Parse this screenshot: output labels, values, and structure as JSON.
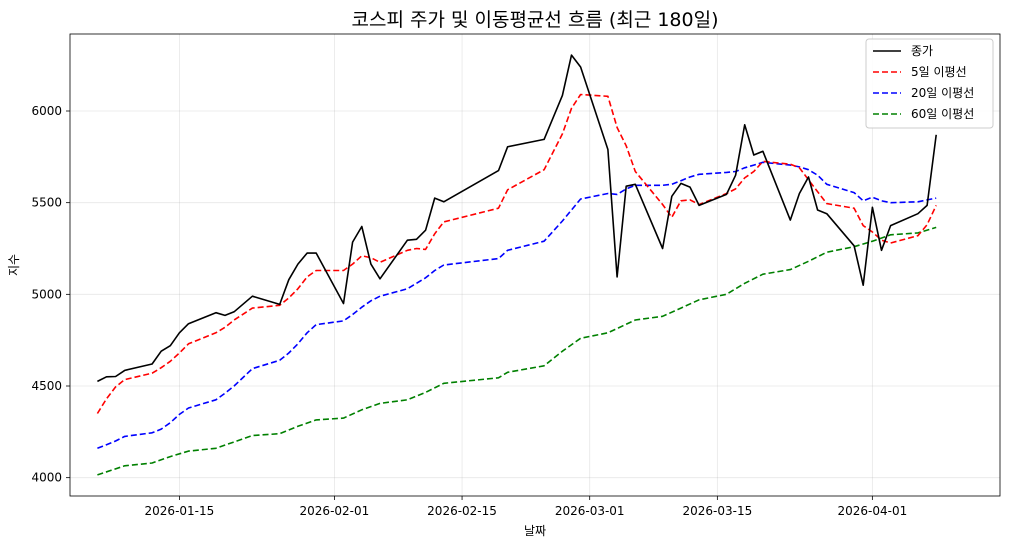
{
  "chart_data": {
    "type": "line",
    "title": "코스피 주가 및 이동평균선 흐름 (최근 180일)",
    "xlabel": "날짜",
    "ylabel": "지수",
    "xlim": [
      "2026-01-03",
      "2026-04-15"
    ],
    "ylim": [
      3900,
      6420
    ],
    "x_ticks": [
      "2026-01-15",
      "2026-02-01",
      "2026-02-15",
      "2026-03-01",
      "2026-03-15",
      "2026-04-01"
    ],
    "y_ticks": [
      4000,
      4500,
      5000,
      5500,
      6000
    ],
    "grid": true,
    "legend_position": "top-right",
    "series": [
      {
        "name": "종가",
        "color": "#000000",
        "style": "solid",
        "points": [
          [
            "2026-01-06",
            4525
          ],
          [
            "2026-01-07",
            4550
          ],
          [
            "2026-01-08",
            4552
          ],
          [
            "2026-01-09",
            4585
          ],
          [
            "2026-01-12",
            4620
          ],
          [
            "2026-01-13",
            4690
          ],
          [
            "2026-01-14",
            4720
          ],
          [
            "2026-01-15",
            4790
          ],
          [
            "2026-01-16",
            4840
          ],
          [
            "2026-01-19",
            4900
          ],
          [
            "2026-01-20",
            4885
          ],
          [
            "2026-01-21",
            4905
          ],
          [
            "2026-01-23",
            4990
          ],
          [
            "2026-01-26",
            4945
          ],
          [
            "2026-01-27",
            5080
          ],
          [
            "2026-01-28",
            5165
          ],
          [
            "2026-01-29",
            5225
          ],
          [
            "2026-01-30",
            5225
          ],
          [
            "2026-02-02",
            4950
          ],
          [
            "2026-02-03",
            5285
          ],
          [
            "2026-02-04",
            5370
          ],
          [
            "2026-02-05",
            5165
          ],
          [
            "2026-02-06",
            5085
          ],
          [
            "2026-02-09",
            5295
          ],
          [
            "2026-02-10",
            5300
          ],
          [
            "2026-02-11",
            5350
          ],
          [
            "2026-02-12",
            5525
          ],
          [
            "2026-02-13",
            5505
          ],
          [
            "2026-02-19",
            5675
          ],
          [
            "2026-02-20",
            5805
          ],
          [
            "2026-02-24",
            5845
          ],
          [
            "2026-02-26",
            6085
          ],
          [
            "2026-02-27",
            6305
          ],
          [
            "2026-02-28",
            6240
          ],
          [
            "2026-03-03",
            5790
          ],
          [
            "2026-03-04",
            5095
          ],
          [
            "2026-03-05",
            5590
          ],
          [
            "2026-03-06",
            5600
          ],
          [
            "2026-03-09",
            5250
          ],
          [
            "2026-03-10",
            5535
          ],
          [
            "2026-03-11",
            5605
          ],
          [
            "2026-03-12",
            5585
          ],
          [
            "2026-03-13",
            5485
          ],
          [
            "2026-03-16",
            5545
          ],
          [
            "2026-03-17",
            5650
          ],
          [
            "2026-03-18",
            5925
          ],
          [
            "2026-03-19",
            5760
          ],
          [
            "2026-03-20",
            5780
          ],
          [
            "2026-03-23",
            5405
          ],
          [
            "2026-03-24",
            5550
          ],
          [
            "2026-03-25",
            5640
          ],
          [
            "2026-03-26",
            5460
          ],
          [
            "2026-03-27",
            5440
          ],
          [
            "2026-03-30",
            5265
          ],
          [
            "2026-03-31",
            5050
          ],
          [
            "2026-04-01",
            5475
          ],
          [
            "2026-04-02",
            5240
          ],
          [
            "2026-04-03",
            5375
          ],
          [
            "2026-04-06",
            5440
          ],
          [
            "2026-04-07",
            5485
          ],
          [
            "2026-04-08",
            5870
          ]
        ]
      },
      {
        "name": "5일 이평선",
        "color": "#ff0000",
        "style": "dashed",
        "points": [
          [
            "2026-01-06",
            4350
          ],
          [
            "2026-01-07",
            4430
          ],
          [
            "2026-01-08",
            4495
          ],
          [
            "2026-01-09",
            4535
          ],
          [
            "2026-01-12",
            4570
          ],
          [
            "2026-01-13",
            4600
          ],
          [
            "2026-01-14",
            4635
          ],
          [
            "2026-01-15",
            4680
          ],
          [
            "2026-01-16",
            4730
          ],
          [
            "2026-01-19",
            4790
          ],
          [
            "2026-01-20",
            4820
          ],
          [
            "2026-01-21",
            4860
          ],
          [
            "2026-01-23",
            4925
          ],
          [
            "2026-01-26",
            4940
          ],
          [
            "2026-01-27",
            4980
          ],
          [
            "2026-01-28",
            5030
          ],
          [
            "2026-01-29",
            5095
          ],
          [
            "2026-01-30",
            5130
          ],
          [
            "2026-02-02",
            5130
          ],
          [
            "2026-02-03",
            5165
          ],
          [
            "2026-02-04",
            5210
          ],
          [
            "2026-02-05",
            5200
          ],
          [
            "2026-02-06",
            5175
          ],
          [
            "2026-02-09",
            5240
          ],
          [
            "2026-02-10",
            5250
          ],
          [
            "2026-02-11",
            5245
          ],
          [
            "2026-02-12",
            5330
          ],
          [
            "2026-02-13",
            5395
          ],
          [
            "2026-02-19",
            5470
          ],
          [
            "2026-02-20",
            5570
          ],
          [
            "2026-02-24",
            5680
          ],
          [
            "2026-02-26",
            5875
          ],
          [
            "2026-02-27",
            6015
          ],
          [
            "2026-02-28",
            6090
          ],
          [
            "2026-03-03",
            6080
          ],
          [
            "2026-03-04",
            5910
          ],
          [
            "2026-03-05",
            5810
          ],
          [
            "2026-03-06",
            5670
          ],
          [
            "2026-03-09",
            5490
          ],
          [
            "2026-03-10",
            5420
          ],
          [
            "2026-03-11",
            5510
          ],
          [
            "2026-03-12",
            5515
          ],
          [
            "2026-03-13",
            5490
          ],
          [
            "2026-03-16",
            5550
          ],
          [
            "2026-03-17",
            5575
          ],
          [
            "2026-03-18",
            5635
          ],
          [
            "2026-03-19",
            5670
          ],
          [
            "2026-03-20",
            5725
          ],
          [
            "2026-03-23",
            5710
          ],
          [
            "2026-03-24",
            5690
          ],
          [
            "2026-03-25",
            5625
          ],
          [
            "2026-03-26",
            5560
          ],
          [
            "2026-03-27",
            5495
          ],
          [
            "2026-03-30",
            5470
          ],
          [
            "2026-03-31",
            5375
          ],
          [
            "2026-04-01",
            5340
          ],
          [
            "2026-04-02",
            5295
          ],
          [
            "2026-04-03",
            5280
          ],
          [
            "2026-04-06",
            5320
          ],
          [
            "2026-04-07",
            5380
          ],
          [
            "2026-04-08",
            5485
          ]
        ]
      },
      {
        "name": "20일 이평선",
        "color": "#0000ff",
        "style": "dashed",
        "points": [
          [
            "2026-01-06",
            4160
          ],
          [
            "2026-01-07",
            4180
          ],
          [
            "2026-01-08",
            4200
          ],
          [
            "2026-01-09",
            4225
          ],
          [
            "2026-01-12",
            4245
          ],
          [
            "2026-01-13",
            4265
          ],
          [
            "2026-01-14",
            4300
          ],
          [
            "2026-01-15",
            4345
          ],
          [
            "2026-01-16",
            4380
          ],
          [
            "2026-01-19",
            4425
          ],
          [
            "2026-01-20",
            4460
          ],
          [
            "2026-01-21",
            4500
          ],
          [
            "2026-01-23",
            4595
          ],
          [
            "2026-01-26",
            4640
          ],
          [
            "2026-01-27",
            4680
          ],
          [
            "2026-01-28",
            4730
          ],
          [
            "2026-01-29",
            4790
          ],
          [
            "2026-01-30",
            4835
          ],
          [
            "2026-02-02",
            4855
          ],
          [
            "2026-02-03",
            4890
          ],
          [
            "2026-02-04",
            4930
          ],
          [
            "2026-02-05",
            4965
          ],
          [
            "2026-02-06",
            4990
          ],
          [
            "2026-02-09",
            5030
          ],
          [
            "2026-02-10",
            5060
          ],
          [
            "2026-02-11",
            5090
          ],
          [
            "2026-02-12",
            5130
          ],
          [
            "2026-02-13",
            5160
          ],
          [
            "2026-02-19",
            5195
          ],
          [
            "2026-02-20",
            5240
          ],
          [
            "2026-02-24",
            5290
          ],
          [
            "2026-02-26",
            5400
          ],
          [
            "2026-02-27",
            5460
          ],
          [
            "2026-02-28",
            5520
          ],
          [
            "2026-03-03",
            5550
          ],
          [
            "2026-03-04",
            5545
          ],
          [
            "2026-03-05",
            5575
          ],
          [
            "2026-03-06",
            5595
          ],
          [
            "2026-03-09",
            5595
          ],
          [
            "2026-03-10",
            5600
          ],
          [
            "2026-03-11",
            5620
          ],
          [
            "2026-03-12",
            5640
          ],
          [
            "2026-03-13",
            5655
          ],
          [
            "2026-03-16",
            5665
          ],
          [
            "2026-03-17",
            5670
          ],
          [
            "2026-03-18",
            5690
          ],
          [
            "2026-03-19",
            5705
          ],
          [
            "2026-03-20",
            5720
          ],
          [
            "2026-03-23",
            5705
          ],
          [
            "2026-03-24",
            5695
          ],
          [
            "2026-03-25",
            5680
          ],
          [
            "2026-03-26",
            5650
          ],
          [
            "2026-03-27",
            5600
          ],
          [
            "2026-03-30",
            5555
          ],
          [
            "2026-03-31",
            5510
          ],
          [
            "2026-04-01",
            5530
          ],
          [
            "2026-04-02",
            5510
          ],
          [
            "2026-04-03",
            5500
          ],
          [
            "2026-04-06",
            5505
          ],
          [
            "2026-04-07",
            5515
          ],
          [
            "2026-04-08",
            5525
          ]
        ]
      },
      {
        "name": "60일 이평선",
        "color": "#008000",
        "style": "dashed",
        "points": [
          [
            "2026-01-06",
            4015
          ],
          [
            "2026-01-09",
            4065
          ],
          [
            "2026-01-12",
            4080
          ],
          [
            "2026-01-14",
            4115
          ],
          [
            "2026-01-16",
            4145
          ],
          [
            "2026-01-19",
            4160
          ],
          [
            "2026-01-23",
            4230
          ],
          [
            "2026-01-26",
            4240
          ],
          [
            "2026-01-28",
            4280
          ],
          [
            "2026-01-30",
            4315
          ],
          [
            "2026-02-02",
            4325
          ],
          [
            "2026-02-04",
            4370
          ],
          [
            "2026-02-06",
            4405
          ],
          [
            "2026-02-09",
            4425
          ],
          [
            "2026-02-11",
            4465
          ],
          [
            "2026-02-13",
            4515
          ],
          [
            "2026-02-19",
            4545
          ],
          [
            "2026-02-20",
            4575
          ],
          [
            "2026-02-24",
            4610
          ],
          [
            "2026-02-26",
            4690
          ],
          [
            "2026-02-28",
            4760
          ],
          [
            "2026-03-03",
            4790
          ],
          [
            "2026-03-06",
            4860
          ],
          [
            "2026-03-09",
            4880
          ],
          [
            "2026-03-11",
            4925
          ],
          [
            "2026-03-13",
            4970
          ],
          [
            "2026-03-16",
            5000
          ],
          [
            "2026-03-18",
            5060
          ],
          [
            "2026-03-20",
            5110
          ],
          [
            "2026-03-23",
            5135
          ],
          [
            "2026-03-25",
            5180
          ],
          [
            "2026-03-27",
            5230
          ],
          [
            "2026-03-30",
            5260
          ],
          [
            "2026-04-01",
            5290
          ],
          [
            "2026-04-03",
            5325
          ],
          [
            "2026-04-06",
            5335
          ],
          [
            "2026-04-08",
            5365
          ]
        ]
      }
    ]
  }
}
